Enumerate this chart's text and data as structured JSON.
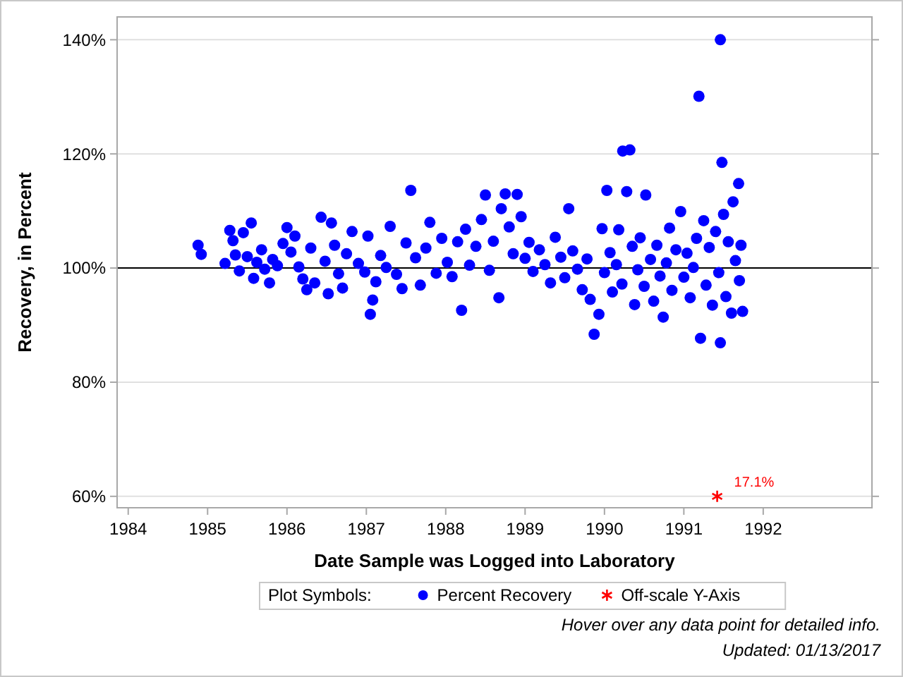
{
  "chart_data": {
    "type": "scatter",
    "xlabel": "Date Sample was Logged into Laboratory",
    "ylabel": "Recovery, in Percent",
    "legend_title": "Plot Symbols:",
    "legend": "bottom",
    "grid": "y",
    "xlim": [
      1983.86,
      1993.37
    ],
    "xticks": [
      1984,
      1985,
      1986,
      1987,
      1988,
      1989,
      1990,
      1991,
      1992
    ],
    "ylim": [
      58,
      144
    ],
    "yticks": [
      {
        "value": 60,
        "label": "60%"
      },
      {
        "value": 80,
        "label": "80%"
      },
      {
        "value": 100,
        "label": "100%"
      },
      {
        "value": 120,
        "label": "120%"
      },
      {
        "value": 140,
        "label": "140%"
      }
    ],
    "ref_lines": [
      {
        "axis": "y",
        "value": 100,
        "color": "#000000"
      }
    ],
    "series": [
      {
        "name": "Percent Recovery",
        "color": "#0000ff",
        "marker": "circle",
        "x": [
          1984.88,
          1984.92,
          1985.22,
          1985.28,
          1985.32,
          1985.35,
          1985.4,
          1985.45,
          1985.5,
          1985.55,
          1985.58,
          1985.62,
          1985.68,
          1985.72,
          1985.78,
          1985.82,
          1985.88,
          1985.95,
          1986.0,
          1986.05,
          1986.1,
          1986.15,
          1986.2,
          1986.25,
          1986.3,
          1986.35,
          1986.43,
          1986.48,
          1986.52,
          1986.56,
          1986.6,
          1986.65,
          1986.7,
          1986.75,
          1986.82,
          1986.9,
          1986.98,
          1987.02,
          1987.05,
          1987.08,
          1987.12,
          1987.18,
          1987.25,
          1987.3,
          1987.38,
          1987.45,
          1987.5,
          1987.56,
          1987.62,
          1987.68,
          1987.75,
          1987.8,
          1987.88,
          1987.95,
          1988.02,
          1988.08,
          1988.15,
          1988.2,
          1988.25,
          1988.3,
          1988.38,
          1988.45,
          1988.5,
          1988.55,
          1988.6,
          1988.67,
          1988.7,
          1988.75,
          1988.8,
          1988.85,
          1988.9,
          1988.95,
          1989.0,
          1989.05,
          1989.1,
          1989.18,
          1989.25,
          1989.32,
          1989.38,
          1989.45,
          1989.5,
          1989.55,
          1989.6,
          1989.66,
          1989.72,
          1989.78,
          1989.82,
          1989.87,
          1989.93,
          1989.97,
          1990.0,
          1990.03,
          1990.07,
          1990.1,
          1990.15,
          1990.18,
          1990.22,
          1990.23,
          1990.28,
          1990.32,
          1990.35,
          1990.38,
          1990.42,
          1990.45,
          1990.5,
          1990.52,
          1990.58,
          1990.62,
          1990.66,
          1990.7,
          1990.74,
          1990.78,
          1990.82,
          1990.85,
          1990.9,
          1990.96,
          1991.0,
          1991.04,
          1991.08,
          1991.12,
          1991.16,
          1991.19,
          1991.21,
          1991.25,
          1991.28,
          1991.32,
          1991.36,
          1991.4,
          1991.44,
          1991.46,
          1991.46,
          1991.48,
          1991.5,
          1991.53,
          1991.56,
          1991.6,
          1991.62,
          1991.65,
          1991.69,
          1991.7,
          1991.72,
          1991.74
        ],
        "values": [
          104.0,
          102.4,
          100.8,
          106.6,
          104.8,
          102.3,
          99.5,
          106.2,
          102.0,
          107.9,
          98.2,
          101.0,
          103.2,
          99.8,
          97.4,
          101.5,
          100.4,
          104.3,
          107.1,
          102.8,
          105.6,
          100.2,
          98.1,
          96.2,
          103.5,
          97.4,
          108.9,
          101.2,
          95.5,
          107.9,
          104.0,
          99.0,
          96.5,
          102.5,
          106.4,
          100.8,
          99.3,
          105.6,
          91.9,
          94.4,
          97.6,
          102.2,
          100.1,
          107.3,
          98.9,
          96.4,
          104.4,
          113.6,
          101.8,
          97.0,
          103.5,
          108.0,
          99.1,
          105.2,
          101.0,
          98.5,
          104.6,
          92.6,
          106.8,
          100.5,
          103.8,
          108.5,
          112.8,
          99.6,
          104.7,
          94.8,
          110.4,
          113.0,
          107.2,
          102.5,
          112.9,
          109.0,
          101.7,
          104.5,
          99.4,
          103.2,
          100.6,
          97.4,
          105.4,
          101.9,
          98.3,
          110.4,
          103.0,
          99.8,
          96.2,
          101.6,
          94.5,
          88.4,
          91.9,
          106.9,
          99.2,
          113.6,
          102.7,
          95.8,
          100.6,
          106.7,
          97.2,
          120.5,
          113.4,
          120.7,
          103.8,
          93.6,
          99.7,
          105.3,
          96.8,
          112.8,
          101.5,
          94.2,
          104.0,
          98.6,
          91.4,
          100.9,
          107.0,
          96.1,
          103.2,
          109.9,
          98.4,
          102.6,
          94.8,
          100.1,
          105.2,
          130.1,
          87.7,
          108.3,
          97.0,
          103.6,
          93.5,
          106.4,
          99.2,
          140.0,
          86.9,
          118.5,
          109.4,
          95.0,
          104.6,
          92.1,
          111.6,
          101.3,
          114.8,
          97.8,
          104.0,
          92.4
        ]
      },
      {
        "name": "Off-scale Y-Axis",
        "color": "#ff0000",
        "marker": "cross",
        "x": [
          1991.42
        ],
        "values": [
          60
        ]
      }
    ],
    "annotations": [
      {
        "text": "17.1%",
        "x": 1991.42,
        "y": 60
      },
      "Hover over any data point for detailed info.",
      "Updated: 01/13/2017"
    ]
  }
}
